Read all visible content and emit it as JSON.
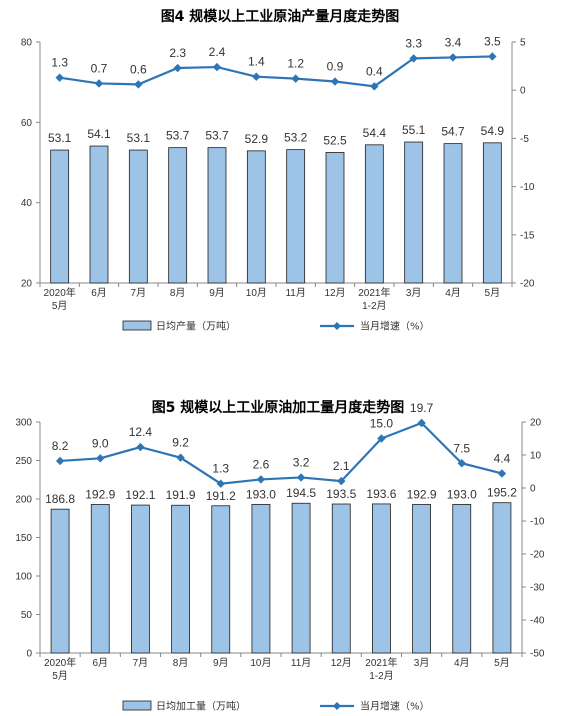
{
  "chart_data": [
    {
      "type": "bar+line",
      "title": "图4  规模以上工业原油产量月度走势图",
      "categories": [
        [
          "2020年",
          "5月"
        ],
        [
          "6月"
        ],
        [
          "7月"
        ],
        [
          "8月"
        ],
        [
          "9月"
        ],
        [
          "10月"
        ],
        [
          "11月"
        ],
        [
          "12月"
        ],
        [
          "2021年",
          "1-2月"
        ],
        [
          "3月"
        ],
        [
          "4月"
        ],
        [
          "5月"
        ]
      ],
      "bar_series": {
        "name": "日均产量（万吨）",
        "values": [
          53.1,
          54.1,
          53.1,
          53.7,
          53.7,
          52.9,
          53.2,
          52.5,
          54.4,
          55.1,
          54.7,
          54.9
        ],
        "labels": [
          "53.1",
          "54.1",
          "53.1",
          "53.7",
          "53.7",
          "52.9",
          "53.2",
          "52.5",
          "54.4",
          "55.1",
          "54.7",
          "54.9"
        ],
        "color": "#9dc3e6",
        "edge_color": "#1f1f1f"
      },
      "line_series": {
        "name": "当月增速（%）",
        "values": [
          1.3,
          0.7,
          0.6,
          2.3,
          2.4,
          1.4,
          1.2,
          0.9,
          0.4,
          3.3,
          3.4,
          3.5
        ],
        "labels": [
          "1.3",
          "0.7",
          "0.6",
          "2.3",
          "2.4",
          "1.4",
          "1.2",
          "0.9",
          "0.4",
          "3.3",
          "3.4",
          "3.5"
        ],
        "color": "#2e75b6"
      },
      "left_axis": {
        "range": [
          20,
          80
        ],
        "ticks": [
          "20",
          "40",
          "60",
          "80"
        ]
      },
      "right_axis": {
        "range": [
          -20,
          5
        ],
        "ticks": [
          "-20",
          "-15",
          "-10",
          "-5",
          "0",
          "5"
        ]
      },
      "grid": false,
      "legend": "bottom"
    },
    {
      "type": "bar+line",
      "title": "图5  规模以上工业原油加工量月度走势图",
      "categories": [
        [
          "2020年",
          "5月"
        ],
        [
          "6月"
        ],
        [
          "7月"
        ],
        [
          "8月"
        ],
        [
          "9月"
        ],
        [
          "10月"
        ],
        [
          "11月"
        ],
        [
          "12月"
        ],
        [
          "2021年",
          "1-2月"
        ],
        [
          "3月"
        ],
        [
          "4月"
        ],
        [
          "5月"
        ]
      ],
      "bar_series": {
        "name": "日均加工量（万吨）",
        "values": [
          186.8,
          192.9,
          192.1,
          191.9,
          191.2,
          193.0,
          194.5,
          193.5,
          193.6,
          192.9,
          193.0,
          195.2
        ],
        "labels": [
          "186.8",
          "192.9",
          "192.1",
          "191.9",
          "191.2",
          "193.0",
          "194.5",
          "193.5",
          "193.6",
          "192.9",
          "193.0",
          "195.2"
        ],
        "color": "#9dc3e6",
        "edge_color": "#1f1f1f"
      },
      "line_series": {
        "name": "当月增速（%）",
        "values": [
          8.2,
          9.0,
          12.4,
          9.2,
          1.3,
          2.6,
          3.2,
          2.1,
          15.0,
          19.7,
          7.5,
          4.4
        ],
        "labels": [
          "8.2",
          "9.0",
          "12.4",
          "9.2",
          "1.3",
          "2.6",
          "3.2",
          "2.1",
          "15.0",
          "19.7",
          "7.5",
          "4.4"
        ],
        "color": "#2e75b6"
      },
      "left_axis": {
        "range": [
          0,
          300
        ],
        "ticks": [
          "0",
          "50",
          "100",
          "150",
          "200",
          "250",
          "300"
        ]
      },
      "right_axis": {
        "range": [
          -50,
          20
        ],
        "ticks": [
          "-50",
          "-40",
          "-30",
          "-20",
          "-10",
          "0",
          "10",
          "20"
        ]
      },
      "grid": false,
      "legend": "bottom"
    }
  ]
}
